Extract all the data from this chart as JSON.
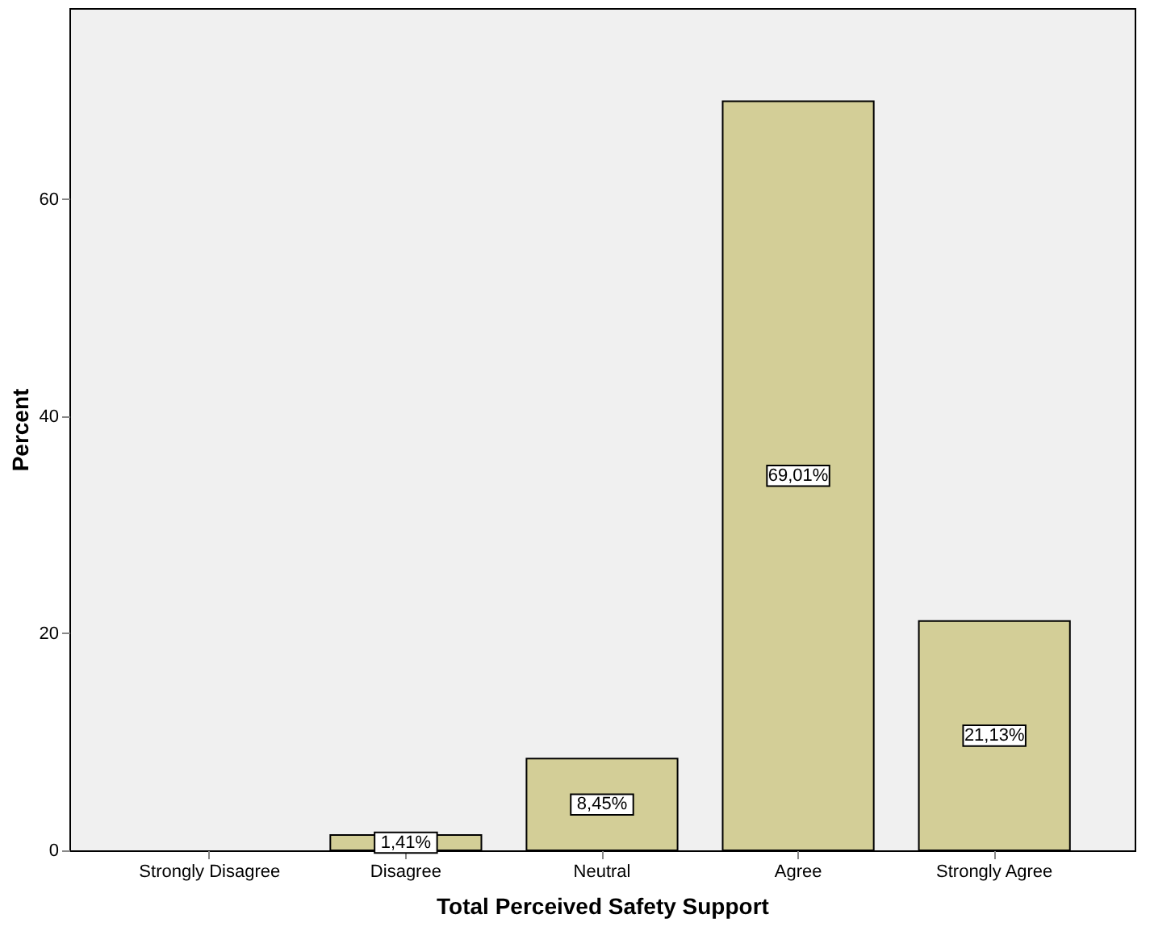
{
  "chart_data": {
    "type": "bar",
    "xlabel": "Total Perceived Safety Support",
    "ylabel": "Percent",
    "categories": [
      "Strongly Disagree",
      "Disagree",
      "Neutral",
      "Agree",
      "Strongly Agree"
    ],
    "values": [
      null,
      1.41,
      8.45,
      69.01,
      21.13
    ],
    "value_labels": [
      null,
      "1,41%",
      "8,45%",
      "69,01%",
      "21,13%"
    ],
    "color": "#d3ce97",
    "ylim": [
      0,
      77.6
    ],
    "yticks": [
      0,
      20,
      40,
      60
    ],
    "grid": false
  }
}
